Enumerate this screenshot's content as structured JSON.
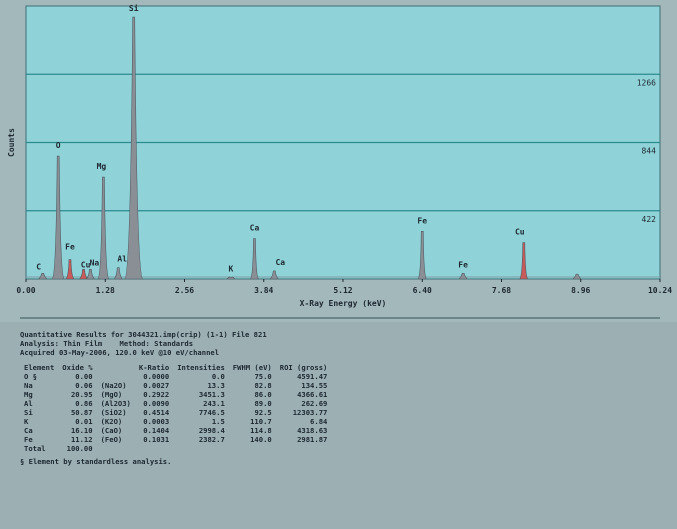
{
  "chart_data": {
    "type": "line",
    "ylabel": "Counts",
    "xlabel": "X-Ray Energy (keV)",
    "xlim": [
      0.0,
      10.24
    ],
    "ylim": [
      0,
      1688
    ],
    "x_ticks": [
      "0.00",
      "1.28",
      "2.56",
      "3.84",
      "5.12",
      "6.40",
      "7.68",
      "8.96",
      "10.24"
    ],
    "gridlines": [
      {
        "value": 1266,
        "label": "1266"
      },
      {
        "value": 844,
        "label": "844"
      },
      {
        "value": 422,
        "label": "422"
      }
    ],
    "peaks": [
      {
        "label": "C",
        "energy": 0.27,
        "counts": 35,
        "color": "#8a8f96"
      },
      {
        "label": "O",
        "energy": 0.52,
        "counts": 760,
        "color": "#8a8f96"
      },
      {
        "label": "Fe",
        "energy": 0.71,
        "counts": 120,
        "color": "#c85a5a"
      },
      {
        "label": "Cu",
        "energy": 0.93,
        "counts": 60,
        "color": "#c85a5a"
      },
      {
        "label": "Na",
        "energy": 1.04,
        "counts": 60,
        "color": "#8a8f96"
      },
      {
        "label": "Mg",
        "energy": 1.25,
        "counts": 630,
        "color": "#8a8f96"
      },
      {
        "label": "Al",
        "energy": 1.49,
        "counts": 70,
        "color": "#8a8f96"
      },
      {
        "label": "Si",
        "energy": 1.74,
        "counts": 1620,
        "color": "#8a8f96"
      },
      {
        "label": "K",
        "energy": 3.31,
        "counts": 10,
        "color": "#8a8f96"
      },
      {
        "label": "Ca",
        "energy": 3.69,
        "counts": 250,
        "color": "#8a8f96"
      },
      {
        "label": "Ca",
        "energy": 4.01,
        "counts": 50,
        "color": "#8a8f96"
      },
      {
        "label": "Fe",
        "energy": 6.4,
        "counts": 295,
        "color": "#8a8f96"
      },
      {
        "label": "Fe",
        "energy": 7.06,
        "counts": 35,
        "color": "#8a8f96"
      },
      {
        "label": "Cu",
        "energy": 8.04,
        "counts": 225,
        "color": "#c85a5a"
      },
      {
        "label": "",
        "energy": 8.9,
        "counts": 30,
        "color": "#8a8f96"
      }
    ],
    "colors": {
      "line": "#2e8a8a",
      "peak_fill": "#8a8f96",
      "peak_cu": "#c85a5a"
    }
  },
  "results": {
    "header_line1": "Quantitative Results for 3044321.imp(crip) (1-1) File 821",
    "header_line2": "Analysis: Thin Film    Method: Standards",
    "header_line3": "Acquired 03-May-2006, 120.0 keV @10 eV/channel",
    "columns": [
      "Element",
      "Oxide %",
      "",
      "K-Ratio",
      "Intensities",
      "FWHM (eV)",
      "ROI (gross)"
    ],
    "rows": [
      [
        "O §",
        "0.00",
        "",
        "0.0000",
        "0.0",
        "75.0",
        "4591.47"
      ],
      [
        "Na",
        "0.06",
        "(Na2O)",
        "0.0027",
        "13.3",
        "82.8",
        "134.55"
      ],
      [
        "Mg",
        "20.95",
        "(MgO)",
        "0.2922",
        "3451.3",
        "86.0",
        "4366.61"
      ],
      [
        "Al",
        "0.86",
        "(Al2O3)",
        "0.0090",
        "243.1",
        "89.0",
        "262.69"
      ],
      [
        "Si",
        "50.87",
        "(SiO2)",
        "0.4514",
        "7746.5",
        "92.5",
        "12303.77"
      ],
      [
        "K",
        "0.01",
        "(K2O)",
        "0.0003",
        "1.5",
        "110.7",
        "6.84"
      ],
      [
        "Ca",
        "16.10",
        "(CaO)",
        "0.1404",
        "2998.4",
        "114.8",
        "4318.63"
      ],
      [
        "Fe",
        "11.12",
        "(FeO)",
        "0.1031",
        "2382.7",
        "140.0",
        "2981.87"
      ],
      [
        "Total",
        "100.00",
        "",
        "",
        "",
        "",
        ""
      ]
    ],
    "footnote": "§ Element by standardless analysis."
  }
}
